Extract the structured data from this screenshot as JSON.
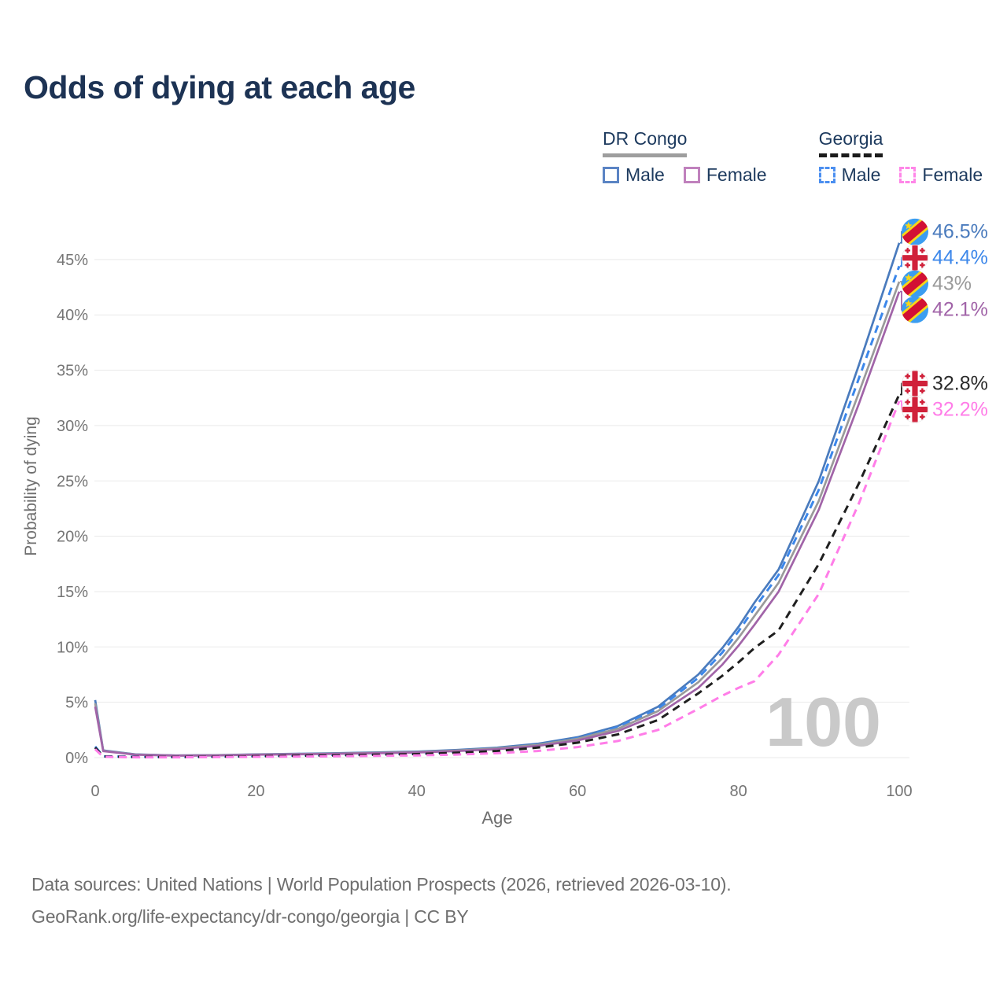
{
  "header": {
    "title": "Odds of dying at each age"
  },
  "legend": {
    "groups": [
      {
        "label": "DR Congo",
        "line_style": "solid",
        "underline_color": "#9e9e9e",
        "items": [
          {
            "label": "Male",
            "color": "#5b84c4"
          },
          {
            "label": "Female",
            "color": "#c081bd"
          }
        ]
      },
      {
        "label": "Georgia",
        "line_style": "dashed",
        "underline_color": "#1b1b1b",
        "items": [
          {
            "label": "Male",
            "color": "#4b8ff0"
          },
          {
            "label": "Female",
            "color": "#ff86e8"
          }
        ]
      }
    ]
  },
  "chart_data": {
    "type": "line",
    "title": "Odds of dying at each age",
    "xlabel": "Age",
    "ylabel": "Probability of dying",
    "xlim": [
      0,
      100
    ],
    "ylim": [
      0,
      48
    ],
    "x_ticks": [
      0,
      20,
      40,
      60,
      80,
      100
    ],
    "y_ticks_percent": [
      0,
      5,
      10,
      15,
      20,
      25,
      30,
      35,
      40,
      45
    ],
    "grid": "horizontal-only",
    "legend_position": "top-right",
    "watermark": "100",
    "ages": [
      0,
      1,
      5,
      10,
      15,
      20,
      25,
      30,
      35,
      40,
      45,
      50,
      55,
      60,
      65,
      70,
      75,
      78,
      80,
      82,
      85,
      90,
      95,
      100
    ],
    "series": [
      {
        "name": "DR Congo Male",
        "country": "DR Congo",
        "sex": "Male",
        "color": "#4a7bbd",
        "dashed": false,
        "flag": "cd",
        "end_label": "46.5%",
        "end_value": 46.5,
        "values": [
          5.2,
          0.65,
          0.3,
          0.2,
          0.22,
          0.3,
          0.35,
          0.4,
          0.47,
          0.55,
          0.7,
          0.9,
          1.25,
          1.85,
          2.85,
          4.6,
          7.5,
          9.9,
          11.8,
          14.0,
          17.0,
          25.0,
          35.5,
          46.5
        ]
      },
      {
        "name": "Georgia Male",
        "country": "Georgia",
        "sex": "Male",
        "color": "#3c87ea",
        "dashed": true,
        "flag": "ge",
        "end_label": "44.4%",
        "end_value": 44.4,
        "values": [
          1.0,
          0.12,
          0.07,
          0.06,
          0.1,
          0.15,
          0.2,
          0.25,
          0.31,
          0.38,
          0.55,
          0.8,
          1.15,
          1.75,
          2.75,
          4.4,
          7.2,
          9.5,
          11.4,
          13.5,
          16.5,
          24.2,
          34.3,
          44.4
        ]
      },
      {
        "name": "DR Congo Both sexes",
        "country": "DR Congo",
        "sex": "Both",
        "color": "#9a9a9a",
        "dashed": false,
        "flag": "cd",
        "end_label": "43%",
        "end_value": 43,
        "values": [
          4.9,
          0.62,
          0.28,
          0.19,
          0.21,
          0.28,
          0.32,
          0.37,
          0.43,
          0.5,
          0.64,
          0.83,
          1.15,
          1.7,
          2.6,
          4.2,
          6.8,
          9.0,
          10.8,
          12.8,
          15.8,
          23.2,
          33.0,
          43.0
        ]
      },
      {
        "name": "DR Congo Female",
        "country": "DR Congo",
        "sex": "Female",
        "color": "#a164a8",
        "dashed": false,
        "flag": "cd",
        "end_label": "42.1%",
        "end_value": 42.1,
        "values": [
          4.6,
          0.58,
          0.26,
          0.18,
          0.19,
          0.26,
          0.3,
          0.34,
          0.4,
          0.46,
          0.59,
          0.76,
          1.05,
          1.55,
          2.4,
          3.9,
          6.3,
          8.4,
          10.1,
          12.0,
          15.0,
          22.4,
          32.0,
          42.1
        ]
      },
      {
        "name": "Georgia Both sexes",
        "country": "Georgia",
        "sex": "Both",
        "color": "#1f1f1f",
        "dashed": true,
        "flag": "ge",
        "end_label": "32.8%",
        "end_value": 32.8,
        "values": [
          0.9,
          0.1,
          0.05,
          0.05,
          0.08,
          0.12,
          0.16,
          0.2,
          0.26,
          0.32,
          0.44,
          0.6,
          0.9,
          1.35,
          2.1,
          3.4,
          5.8,
          7.4,
          8.6,
          9.9,
          11.5,
          17.5,
          24.8,
          32.8
        ]
      },
      {
        "name": "Georgia Female",
        "country": "Georgia",
        "sex": "Female",
        "color": "#ff7de8",
        "dashed": true,
        "flag": "ge",
        "end_label": "32.2%",
        "end_value": 32.2,
        "values": [
          0.75,
          0.07,
          0.03,
          0.03,
          0.05,
          0.07,
          0.09,
          0.12,
          0.16,
          0.2,
          0.28,
          0.4,
          0.6,
          0.95,
          1.5,
          2.5,
          4.4,
          5.6,
          6.3,
          6.9,
          9.3,
          14.8,
          23.0,
          32.2
        ]
      }
    ],
    "flag_colors": {
      "cd": {
        "field": "#3b9df0",
        "stripe": "#d21034",
        "accent": "#f7d618"
      },
      "ge": {
        "field": "#ffffff",
        "cross": "#d0213a",
        "rim": "#ececec"
      }
    },
    "axis_text_color": "#757575",
    "grid_color": "#e9e9e9",
    "watermark_color": "#c9c9c9"
  },
  "footer": {
    "line1": "Data sources: United Nations | World Population Prospects (2026, retrieved 2026-03-10).",
    "line2": "GeoRank.org/life-expectancy/dr-congo/georgia | CC BY"
  }
}
